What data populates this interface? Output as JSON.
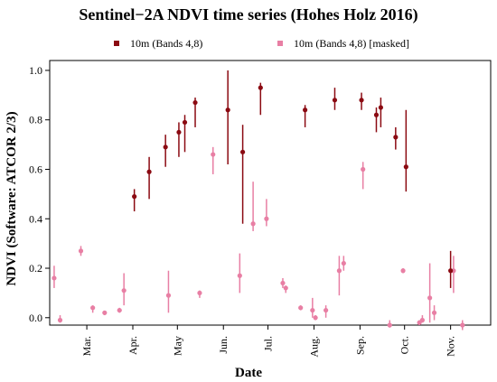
{
  "colors": {
    "series1": "#8b0a12",
    "series2": "#e87fa4",
    "axis": "#000000"
  },
  "chart_data": {
    "type": "scatter",
    "title": "Sentinel−2A NDVI time series (Hohes Holz 2016)",
    "xlabel": "Date",
    "ylabel": "NDVI (Software: ATCOR 2/3)",
    "xlim": [
      "2016-02-05",
      "2016-11-28"
    ],
    "ylim": [
      -0.03,
      1.04
    ],
    "x_ticks": [
      {
        "date": "2016-03-01",
        "label": "Mar."
      },
      {
        "date": "2016-04-01",
        "label": "Apr."
      },
      {
        "date": "2016-05-01",
        "label": "May"
      },
      {
        "date": "2016-06-01",
        "label": "Jun."
      },
      {
        "date": "2016-07-01",
        "label": "Jul."
      },
      {
        "date": "2016-08-01",
        "label": "Aug."
      },
      {
        "date": "2016-09-01",
        "label": "Sep."
      },
      {
        "date": "2016-10-01",
        "label": "Oct."
      },
      {
        "date": "2016-11-01",
        "label": "Nov."
      }
    ],
    "y_ticks": [
      0.0,
      0.2,
      0.4,
      0.6,
      0.8,
      1.0
    ],
    "y_tick_labels": [
      "0.0",
      "0.2",
      "0.4",
      "0.6",
      "0.8",
      "1.0"
    ],
    "grid": false,
    "legend_position": "top",
    "series": [
      {
        "name": "10m (Bands 4,8)",
        "color": "#8b0a12",
        "points": [
          {
            "x": "2016-04-02",
            "y": 0.49,
            "low": 0.43,
            "high": 0.52
          },
          {
            "x": "2016-04-12",
            "y": 0.59,
            "low": 0.48,
            "high": 0.65
          },
          {
            "x": "2016-04-23",
            "y": 0.69,
            "low": 0.61,
            "high": 0.74
          },
          {
            "x": "2016-05-02",
            "y": 0.75,
            "low": 0.65,
            "high": 0.79
          },
          {
            "x": "2016-05-06",
            "y": 0.79,
            "low": 0.67,
            "high": 0.82
          },
          {
            "x": "2016-05-13",
            "y": 0.87,
            "low": 0.77,
            "high": 0.89
          },
          {
            "x": "2016-06-04",
            "y": 0.84,
            "low": 0.62,
            "high": 1.0
          },
          {
            "x": "2016-06-14",
            "y": 0.67,
            "low": 0.38,
            "high": 0.78
          },
          {
            "x": "2016-06-26",
            "y": 0.93,
            "low": 0.82,
            "high": 0.95
          },
          {
            "x": "2016-07-26",
            "y": 0.84,
            "low": 0.77,
            "high": 0.86
          },
          {
            "x": "2016-08-15",
            "y": 0.88,
            "low": 0.84,
            "high": 0.93
          },
          {
            "x": "2016-09-02",
            "y": 0.88,
            "low": 0.84,
            "high": 0.91
          },
          {
            "x": "2016-09-12",
            "y": 0.82,
            "low": 0.75,
            "high": 0.85
          },
          {
            "x": "2016-09-15",
            "y": 0.85,
            "low": 0.77,
            "high": 0.89
          },
          {
            "x": "2016-09-25",
            "y": 0.73,
            "low": 0.68,
            "high": 0.77
          },
          {
            "x": "2016-10-02",
            "y": 0.61,
            "low": 0.51,
            "high": 0.84
          },
          {
            "x": "2016-11-01",
            "y": 0.19,
            "low": 0.12,
            "high": 0.27
          }
        ]
      },
      {
        "name": "10m (Bands 4,8) [masked]",
        "color": "#e87fa4",
        "points": [
          {
            "x": "2016-02-08",
            "y": 0.16,
            "low": 0.12,
            "high": 0.21
          },
          {
            "x": "2016-02-12",
            "y": -0.01,
            "low": -0.02,
            "high": 0.01
          },
          {
            "x": "2016-02-26",
            "y": 0.27,
            "low": 0.25,
            "high": 0.29
          },
          {
            "x": "2016-03-05",
            "y": 0.04,
            "low": 0.02,
            "high": 0.05
          },
          {
            "x": "2016-03-13",
            "y": 0.02,
            "low": 0.01,
            "high": 0.02
          },
          {
            "x": "2016-03-23",
            "y": 0.03,
            "low": 0.02,
            "high": 0.04
          },
          {
            "x": "2016-03-26",
            "y": 0.11,
            "low": 0.05,
            "high": 0.18
          },
          {
            "x": "2016-04-25",
            "y": 0.09,
            "low": 0.02,
            "high": 0.19
          },
          {
            "x": "2016-05-16",
            "y": 0.1,
            "low": 0.08,
            "high": 0.11
          },
          {
            "x": "2016-05-25",
            "y": 0.66,
            "low": 0.58,
            "high": 0.69
          },
          {
            "x": "2016-06-12",
            "y": 0.17,
            "low": 0.1,
            "high": 0.26
          },
          {
            "x": "2016-06-21",
            "y": 0.38,
            "low": 0.35,
            "high": 0.55
          },
          {
            "x": "2016-06-30",
            "y": 0.4,
            "low": 0.37,
            "high": 0.48
          },
          {
            "x": "2016-07-11",
            "y": 0.14,
            "low": 0.12,
            "high": 0.16
          },
          {
            "x": "2016-07-13",
            "y": 0.12,
            "low": 0.1,
            "high": 0.13
          },
          {
            "x": "2016-07-23",
            "y": 0.04,
            "low": 0.03,
            "high": 0.05
          },
          {
            "x": "2016-07-31",
            "y": 0.03,
            "low": 0.0,
            "high": 0.08
          },
          {
            "x": "2016-08-02",
            "y": 0.0,
            "low": -0.01,
            "high": 0.01
          },
          {
            "x": "2016-08-09",
            "y": 0.03,
            "low": 0.0,
            "high": 0.05
          },
          {
            "x": "2016-08-18",
            "y": 0.19,
            "low": 0.09,
            "high": 0.25
          },
          {
            "x": "2016-08-21",
            "y": 0.22,
            "low": 0.19,
            "high": 0.25
          },
          {
            "x": "2016-09-03",
            "y": 0.6,
            "low": 0.52,
            "high": 0.63
          },
          {
            "x": "2016-09-21",
            "y": -0.03,
            "low": -0.04,
            "high": -0.01
          },
          {
            "x": "2016-09-30",
            "y": 0.19,
            "low": 0.18,
            "high": 0.2
          },
          {
            "x": "2016-10-11",
            "y": -0.02,
            "low": -0.03,
            "high": -0.01
          },
          {
            "x": "2016-10-13",
            "y": -0.01,
            "low": -0.02,
            "high": 0.01
          },
          {
            "x": "2016-10-18",
            "y": 0.08,
            "low": -0.02,
            "high": 0.22
          },
          {
            "x": "2016-10-21",
            "y": 0.02,
            "low": -0.01,
            "high": 0.05
          },
          {
            "x": "2016-11-03",
            "y": 0.19,
            "low": 0.1,
            "high": 0.25
          },
          {
            "x": "2016-11-09",
            "y": -0.03,
            "low": -0.05,
            "high": -0.01
          }
        ]
      }
    ]
  }
}
